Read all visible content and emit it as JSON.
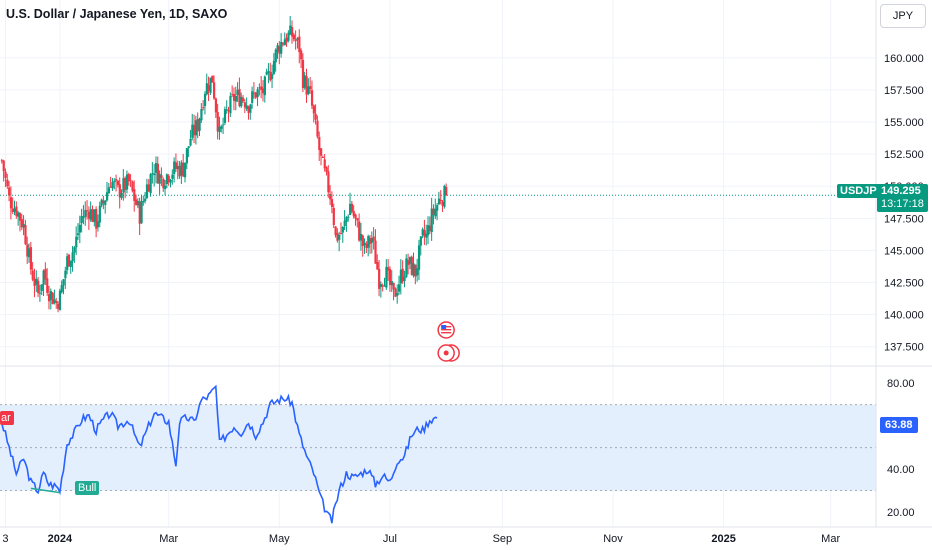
{
  "header": {
    "title": "U.S. Dollar / Japanese Yen, 1D, SAXO",
    "currency_button": "JPY"
  },
  "badges": {
    "symbol": "USDJPY",
    "last_price": "149.295",
    "countdown": "13:17:18",
    "rsi_value": "63.88",
    "bull_label": "Bull",
    "bear_label": "ar"
  },
  "colors": {
    "up": "#089981",
    "down": "#f23645",
    "rsi_line": "#2962ff",
    "rsi_band": "#e3effd",
    "grid": "#f0f3fa",
    "last_price_line": "#089981"
  },
  "event_icons": [
    "us-flag-icon",
    "economic-event-icon"
  ],
  "chart_data": [
    {
      "type": "candlestick",
      "title": "U.S. Dollar / Japanese Yen, 1D, SAXO",
      "y_axis_side": "right",
      "ylim": [
        136,
        164.5
      ],
      "y_ticks": [
        137.5,
        140.0,
        142.5,
        145.0,
        147.5,
        150.0,
        152.5,
        155.0,
        157.5,
        160.0
      ],
      "y_tick_labels": [
        "137.500",
        "140.000",
        "142.500",
        "145.000",
        "147.500",
        "150.000",
        "152.500",
        "155.000",
        "157.500",
        "160.000"
      ],
      "x_tick_labels": [
        "3",
        "2024",
        "Mar",
        "May",
        "Jul",
        "Sep",
        "Nov",
        "2025",
        "Mar"
      ],
      "x_tick_days": [
        -30,
        0,
        60,
        121,
        182,
        244,
        305,
        366,
        425
      ],
      "x_range_days": [
        -33,
        450
      ],
      "last_price": 149.295,
      "anchors_day_close": [
        [
          -32,
          152.0
        ],
        [
          -28,
          149.0
        ],
        [
          -24,
          148.2
        ],
        [
          -20,
          146.9
        ],
        [
          -16,
          143.6
        ],
        [
          -12,
          141.6
        ],
        [
          -9,
          143.3
        ],
        [
          -6,
          141.8
        ],
        [
          -2,
          140.9
        ],
        [
          0,
          141.4
        ],
        [
          4,
          144.2
        ],
        [
          8,
          145.2
        ],
        [
          12,
          147.6
        ],
        [
          16,
          148.2
        ],
        [
          20,
          147.2
        ],
        [
          24,
          148.7
        ],
        [
          28,
          150.5
        ],
        [
          32,
          149.6
        ],
        [
          38,
          150.3
        ],
        [
          44,
          147.8
        ],
        [
          48,
          150.0
        ],
        [
          52,
          151.5
        ],
        [
          56,
          150.5
        ],
        [
          60,
          151.0
        ],
        [
          64,
          151.4
        ],
        [
          68,
          151.4
        ],
        [
          72,
          153.8
        ],
        [
          76,
          154.8
        ],
        [
          80,
          157.6
        ],
        [
          84,
          158.4
        ],
        [
          88,
          153.9
        ],
        [
          92,
          155.7
        ],
        [
          96,
          156.9
        ],
        [
          100,
          157.0
        ],
        [
          104,
          156.4
        ],
        [
          108,
          157.3
        ],
        [
          112,
          157.4
        ],
        [
          116,
          158.9
        ],
        [
          120,
          160.7
        ],
        [
          124,
          161.6
        ],
        [
          128,
          161.8
        ],
        [
          132,
          160.8
        ],
        [
          134,
          158.4
        ],
        [
          138,
          157.0
        ],
        [
          144,
          152.0
        ],
        [
          150,
          148.8
        ],
        [
          152,
          146.0
        ],
        [
          156,
          146.5
        ],
        [
          160,
          148.6
        ],
        [
          164,
          146.8
        ],
        [
          168,
          145.0
        ],
        [
          172,
          146.0
        ],
        [
          176,
          142.8
        ],
        [
          180,
          143.1
        ],
        [
          184,
          141.4
        ],
        [
          188,
          143.0
        ],
        [
          192,
          144.0
        ],
        [
          196,
          143.3
        ],
        [
          200,
          146.0
        ],
        [
          202,
          146.1
        ],
        [
          205,
          147.6
        ],
        [
          210,
          149.2
        ],
        [
          213,
          149.3
        ]
      ]
    },
    {
      "type": "line",
      "title": "RSI",
      "ylim": [
        13,
        88
      ],
      "y_ticks": [
        20,
        40,
        60,
        80
      ],
      "y_tick_labels": [
        "20.00",
        "40.00",
        "60.00",
        "80.00"
      ],
      "band": [
        30,
        70
      ],
      "midline": 50,
      "last_value": 63.88,
      "anchors_day_value": [
        [
          -32,
          62
        ],
        [
          -28,
          50
        ],
        [
          -24,
          38
        ],
        [
          -20,
          45
        ],
        [
          -16,
          34
        ],
        [
          -12,
          30
        ],
        [
          -9,
          38
        ],
        [
          -6,
          33
        ],
        [
          -2,
          32
        ],
        [
          0,
          30
        ],
        [
          4,
          52
        ],
        [
          8,
          57
        ],
        [
          12,
          63
        ],
        [
          16,
          65
        ],
        [
          20,
          58
        ],
        [
          24,
          63
        ],
        [
          28,
          66
        ],
        [
          32,
          60
        ],
        [
          38,
          63
        ],
        [
          44,
          50
        ],
        [
          48,
          58
        ],
        [
          52,
          66
        ],
        [
          56,
          64
        ],
        [
          60,
          62
        ],
        [
          64,
          42
        ],
        [
          66,
          62
        ],
        [
          70,
          64
        ],
        [
          74,
          62
        ],
        [
          78,
          72
        ],
        [
          82,
          74
        ],
        [
          86,
          78
        ],
        [
          88,
          52
        ],
        [
          92,
          56
        ],
        [
          96,
          60
        ],
        [
          100,
          57
        ],
        [
          104,
          62
        ],
        [
          108,
          56
        ],
        [
          112,
          62
        ],
        [
          116,
          70
        ],
        [
          120,
          72
        ],
        [
          124,
          73
        ],
        [
          128,
          71
        ],
        [
          132,
          56
        ],
        [
          136,
          46
        ],
        [
          140,
          38
        ],
        [
          144,
          26
        ],
        [
          148,
          18
        ],
        [
          150,
          16
        ],
        [
          154,
          30
        ],
        [
          158,
          38
        ],
        [
          162,
          36
        ],
        [
          166,
          38
        ],
        [
          170,
          40
        ],
        [
          174,
          33
        ],
        [
          178,
          37
        ],
        [
          182,
          34
        ],
        [
          186,
          44
        ],
        [
          190,
          46
        ],
        [
          194,
          56
        ],
        [
          198,
          59
        ],
        [
          200,
          58
        ],
        [
          204,
          63
        ],
        [
          208,
          64
        ]
      ]
    }
  ]
}
